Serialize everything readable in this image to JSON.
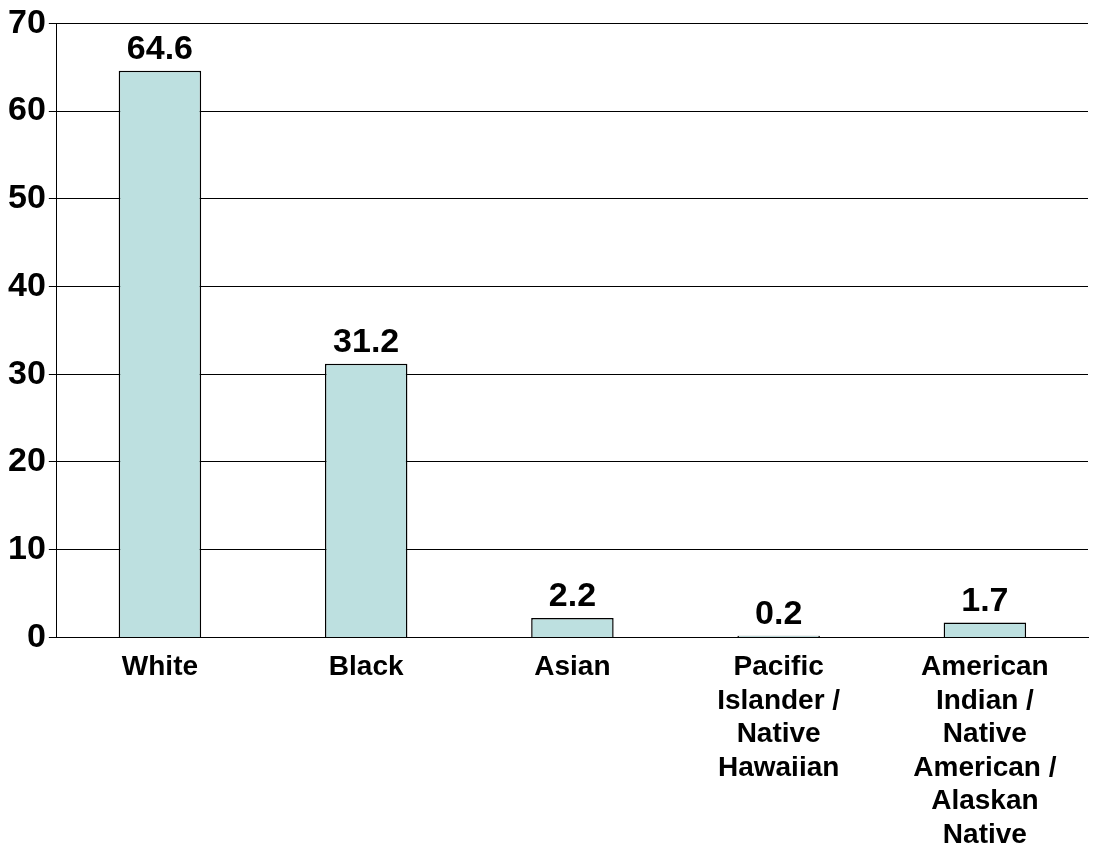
{
  "chart_data": {
    "type": "bar",
    "categories": [
      "White",
      "Black",
      "Asian",
      "Pacific Islander / Native Hawaiian",
      "American Indian / Native American / Alaskan Native"
    ],
    "values": [
      64.6,
      31.2,
      2.2,
      0.2,
      1.7
    ],
    "color": "#bde0e0",
    "ylim": [
      0,
      70
    ],
    "yticks": [
      0,
      10,
      20,
      30,
      40,
      50,
      60,
      70
    ],
    "grid": "y",
    "legend": false,
    "data_labels": true
  }
}
